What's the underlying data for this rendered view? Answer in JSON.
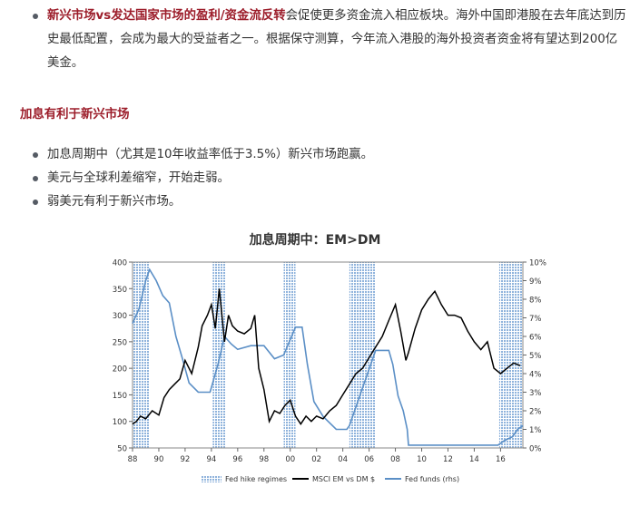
{
  "intro": {
    "bold": "新兴市场vs发达国家市场的盈利/资金流反转",
    "rest": "会促使更多资金流入相应板块。海外中国即港股在去年底达到历史最低配置，会成为最大的受益者之一。根据保守测算，今年流入港股的海外投资者资金将有望达到200亿美金。"
  },
  "section": {
    "heading": "加息有利于新兴市场",
    "points": [
      "加息周期中（尤其是10年收益率低于3.5%）新兴市场跑赢。",
      "美元与全球利差缩窄，开始走弱。",
      "弱美元有利于新兴市场。"
    ]
  },
  "chart_title": "加息周期中：EM>DM",
  "colors": {
    "accent_red": "#9c1d2a",
    "em_line": "#000000",
    "fed_line": "#5b8fc6",
    "regime_fill": "#8fb3dc"
  },
  "chart_data": {
    "type": "line",
    "x_tick_labels": [
      "88",
      "90",
      "92",
      "94",
      "96",
      "98",
      "00",
      "02",
      "04",
      "06",
      "08",
      "10",
      "12",
      "14",
      "16"
    ],
    "x_ticks": [
      1988,
      1990,
      1992,
      1994,
      1996,
      1998,
      2000,
      2002,
      2004,
      2006,
      2008,
      2010,
      2012,
      2014,
      2016
    ],
    "x_range": [
      1988,
      2017.7
    ],
    "y_left": {
      "range": [
        50,
        400
      ],
      "ticks": [
        50,
        100,
        150,
        200,
        250,
        300,
        350,
        400
      ]
    },
    "y_right": {
      "range": [
        0,
        10
      ],
      "ticks": [
        "0%",
        "1%",
        "2%",
        "3%",
        "4%",
        "5%",
        "6%",
        "7%",
        "8%",
        "9%",
        "10%"
      ]
    },
    "fed_hike_regimes": [
      [
        1988.0,
        1989.3
      ],
      [
        1994.1,
        1995.1
      ],
      [
        1999.5,
        2000.4
      ],
      [
        2004.5,
        2006.5
      ],
      [
        2015.9,
        2017.7
      ]
    ],
    "series": [
      {
        "name": "MSCI EM vs DM $",
        "axis": "left",
        "x": [
          1988.0,
          1988.3,
          1988.6,
          1989.0,
          1989.5,
          1990.0,
          1990.4,
          1990.8,
          1991.2,
          1991.6,
          1992.0,
          1992.5,
          1993.0,
          1993.3,
          1993.7,
          1994.0,
          1994.3,
          1994.6,
          1995.0,
          1995.3,
          1995.6,
          1996.0,
          1996.5,
          1997.0,
          1997.3,
          1997.6,
          1998.0,
          1998.4,
          1998.8,
          1999.2,
          1999.6,
          2000.0,
          2000.4,
          2000.8,
          2001.2,
          2001.6,
          2002.0,
          2002.5,
          2003.0,
          2003.5,
          2004.0,
          2004.5,
          2005.0,
          2005.5,
          2006.0,
          2006.5,
          2007.0,
          2007.5,
          2008.0,
          2008.4,
          2008.8,
          2009.0,
          2009.5,
          2010.0,
          2010.5,
          2011.0,
          2011.5,
          2012.0,
          2012.5,
          2013.0,
          2013.5,
          2014.0,
          2014.5,
          2015.0,
          2015.5,
          2016.0,
          2016.5,
          2017.0,
          2017.5
        ],
        "values": [
          95,
          100,
          110,
          105,
          120,
          112,
          145,
          160,
          170,
          180,
          215,
          190,
          240,
          280,
          300,
          320,
          275,
          350,
          250,
          300,
          280,
          270,
          265,
          275,
          300,
          200,
          160,
          100,
          120,
          115,
          130,
          140,
          110,
          95,
          110,
          100,
          110,
          105,
          120,
          130,
          150,
          170,
          190,
          200,
          220,
          240,
          260,
          290,
          320,
          270,
          215,
          230,
          275,
          310,
          330,
          345,
          320,
          300,
          300,
          295,
          270,
          250,
          235,
          250,
          200,
          190,
          200,
          210,
          205
        ]
      },
      {
        "name": "Fed funds (rhs)",
        "axis": "right",
        "x": [
          1988.0,
          1988.5,
          1989.0,
          1989.3,
          1989.8,
          1990.3,
          1990.8,
          1991.3,
          1991.8,
          1992.3,
          1993.0,
          1993.9,
          1994.1,
          1994.5,
          1995.0,
          1995.5,
          1996.0,
          1997.0,
          1998.0,
          1998.8,
          1999.5,
          2000.4,
          2000.9,
          2001.3,
          2001.8,
          2002.5,
          2003.5,
          2004.3,
          2004.5,
          2006.5,
          2007.5,
          2007.8,
          2008.2,
          2008.6,
          2008.9,
          2009.0,
          2015.8,
          2016.3,
          2016.9,
          2017.3,
          2017.7
        ],
        "values": [
          6.7,
          7.5,
          9.0,
          9.6,
          9.0,
          8.2,
          7.8,
          6.0,
          4.8,
          3.5,
          3.0,
          3.0,
          3.5,
          4.5,
          6.0,
          5.6,
          5.3,
          5.5,
          5.5,
          4.8,
          5.0,
          6.5,
          6.5,
          4.5,
          2.5,
          1.7,
          1.0,
          1.0,
          1.2,
          5.25,
          5.25,
          4.5,
          2.8,
          2.0,
          1.0,
          0.15,
          0.15,
          0.4,
          0.6,
          1.0,
          1.2
        ]
      }
    ],
    "legend": [
      "Fed hike regimes",
      "MSCI EM vs DM $",
      "Fed funds (rhs)"
    ],
    "legend_position": "bottom"
  }
}
